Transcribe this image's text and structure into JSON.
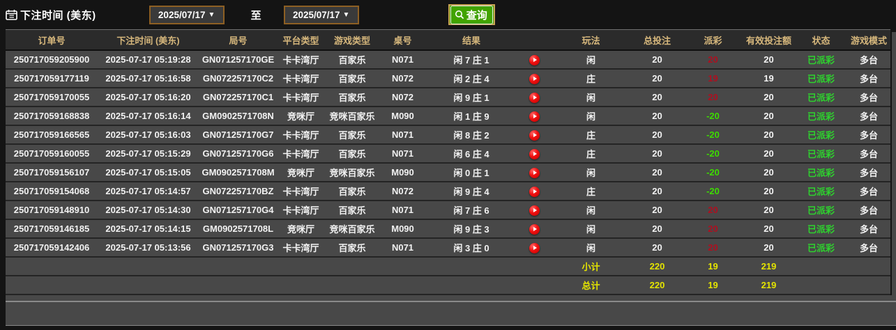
{
  "toolbar": {
    "label": "下注时间 (美东)",
    "calendar_icon": "calendar-icon",
    "date_from": "2025/07/17",
    "to_label": "至",
    "date_to": "2025/07/17",
    "search_icon": "magnifier-icon",
    "search_label": "查询",
    "dropdown_arrow": "▼"
  },
  "colors": {
    "header_text": "#d6b77c",
    "row_bg": "#484848",
    "payout_win": "#ad1020",
    "payout_loss": "#3ddc00",
    "status_green": "#2ed22e",
    "totals_yellow": "#e4e400",
    "button_green": "#41a300",
    "border_tan": "#8d5f23"
  },
  "table": {
    "headers": [
      "订单号",
      "下注时间 (美东)",
      "局号",
      "平台类型",
      "游戏类型",
      "桌号",
      "结果",
      "",
      "玩法",
      "总投注",
      "派彩",
      "有效投注额",
      "状态",
      "游戏模式"
    ],
    "rows": [
      {
        "order": "250717059205900",
        "time": "2025-07-17 05:19:28",
        "round": "GN071257170GE",
        "platform": "卡卡湾厅",
        "game": "百家乐",
        "table": "N071",
        "result": "闲 7 庄 1",
        "play": "闲",
        "bet": "20",
        "payout": "20",
        "payout_sign": "pos",
        "valid": "20",
        "status": "已派彩",
        "mode": "多台"
      },
      {
        "order": "250717059177119",
        "time": "2025-07-17 05:16:58",
        "round": "GN072257170C2",
        "platform": "卡卡湾厅",
        "game": "百家乐",
        "table": "N072",
        "result": "闲 2 庄 4",
        "play": "庄",
        "bet": "20",
        "payout": "19",
        "payout_sign": "pos",
        "valid": "19",
        "status": "已派彩",
        "mode": "多台"
      },
      {
        "order": "250717059170055",
        "time": "2025-07-17 05:16:20",
        "round": "GN072257170C1",
        "platform": "卡卡湾厅",
        "game": "百家乐",
        "table": "N072",
        "result": "闲 9 庄 1",
        "play": "闲",
        "bet": "20",
        "payout": "20",
        "payout_sign": "pos",
        "valid": "20",
        "status": "已派彩",
        "mode": "多台"
      },
      {
        "order": "250717059168838",
        "time": "2025-07-17 05:16:14",
        "round": "GM0902571708N",
        "platform": "竞咪厅",
        "game": "竞咪百家乐",
        "table": "M090",
        "result": "闲 1 庄 9",
        "play": "闲",
        "bet": "20",
        "payout": "-20",
        "payout_sign": "neg",
        "valid": "20",
        "status": "已派彩",
        "mode": "多台"
      },
      {
        "order": "250717059166565",
        "time": "2025-07-17 05:16:03",
        "round": "GN071257170G7",
        "platform": "卡卡湾厅",
        "game": "百家乐",
        "table": "N071",
        "result": "闲 8 庄 2",
        "play": "庄",
        "bet": "20",
        "payout": "-20",
        "payout_sign": "neg",
        "valid": "20",
        "status": "已派彩",
        "mode": "多台"
      },
      {
        "order": "250717059160055",
        "time": "2025-07-17 05:15:29",
        "round": "GN071257170G6",
        "platform": "卡卡湾厅",
        "game": "百家乐",
        "table": "N071",
        "result": "闲 6 庄 4",
        "play": "庄",
        "bet": "20",
        "payout": "-20",
        "payout_sign": "neg",
        "valid": "20",
        "status": "已派彩",
        "mode": "多台"
      },
      {
        "order": "250717059156107",
        "time": "2025-07-17 05:15:05",
        "round": "GM0902571708M",
        "platform": "竞咪厅",
        "game": "竞咪百家乐",
        "table": "M090",
        "result": "闲 0 庄 1",
        "play": "闲",
        "bet": "20",
        "payout": "-20",
        "payout_sign": "neg",
        "valid": "20",
        "status": "已派彩",
        "mode": "多台"
      },
      {
        "order": "250717059154068",
        "time": "2025-07-17 05:14:57",
        "round": "GN072257170BZ",
        "platform": "卡卡湾厅",
        "game": "百家乐",
        "table": "N072",
        "result": "闲 9 庄 4",
        "play": "庄",
        "bet": "20",
        "payout": "-20",
        "payout_sign": "neg",
        "valid": "20",
        "status": "已派彩",
        "mode": "多台"
      },
      {
        "order": "250717059148910",
        "time": "2025-07-17 05:14:30",
        "round": "GN071257170G4",
        "platform": "卡卡湾厅",
        "game": "百家乐",
        "table": "N071",
        "result": "闲 7 庄 6",
        "play": "闲",
        "bet": "20",
        "payout": "20",
        "payout_sign": "pos",
        "valid": "20",
        "status": "已派彩",
        "mode": "多台"
      },
      {
        "order": "250717059146185",
        "time": "2025-07-17 05:14:15",
        "round": "GM0902571708L",
        "platform": "竞咪厅",
        "game": "竞咪百家乐",
        "table": "M090",
        "result": "闲 9 庄 3",
        "play": "闲",
        "bet": "20",
        "payout": "20",
        "payout_sign": "pos",
        "valid": "20",
        "status": "已派彩",
        "mode": "多台"
      },
      {
        "order": "250717059142406",
        "time": "2025-07-17 05:13:56",
        "round": "GN071257170G3",
        "platform": "卡卡湾厅",
        "game": "百家乐",
        "table": "N071",
        "result": "闲 3 庄 0",
        "play": "闲",
        "bet": "20",
        "payout": "20",
        "payout_sign": "pos",
        "valid": "20",
        "status": "已派彩",
        "mode": "多台"
      }
    ],
    "subtotal": {
      "label": "小计",
      "bet": "220",
      "payout": "19",
      "valid": "219"
    },
    "total": {
      "label": "总计",
      "bet": "220",
      "payout": "19",
      "valid": "219"
    }
  }
}
